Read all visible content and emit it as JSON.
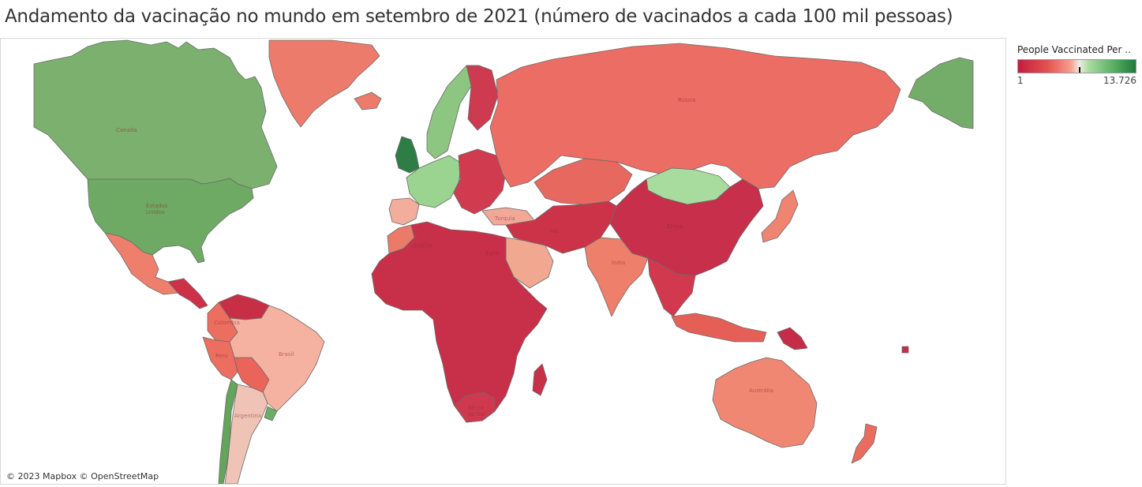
{
  "title": "Andamento da vacinação no mundo em setembro de 2021 (número de vacinados a cada 100 mil pessoas)",
  "legend": {
    "title": "People Vaccinated Per ..",
    "min_label": "1",
    "max_label": "13.726"
  },
  "attribution": "© 2023 Mapbox © OpenStreetMap",
  "colors": {
    "canada": "#7bb06f",
    "usa": "#6eaa63",
    "alaska": "#74ad6a",
    "greenland": "#ec7b6b",
    "mexico": "#ee7f6c",
    "central_america": "#cc3148",
    "south_america": "#f6b2a0",
    "colombia_peru": "#ec6e5f",
    "venezuela": "#c92e47",
    "chile": "#63a55a",
    "uruguay": "#6aad63",
    "argentina": "#efc4b7",
    "bolivia": "#ea6459",
    "uk": "#2e7d44",
    "france_germany": "#9bd391",
    "iberia": "#f2ad9c",
    "scandinavia_green": "#8cc680",
    "scandinavia_red": "#ce3a4f",
    "eastern_europe": "#d03b50",
    "russia": "#eb6d63",
    "kazakhstan": "#e7685f",
    "mongolia": "#a7dc9e",
    "china": "#c72f4a",
    "india": "#ee7f6b",
    "middle_east": "#cc3349",
    "saudi": "#f0a890",
    "africa": "#c82f49",
    "morocco": "#ec7a68",
    "southeast_asia": "#d2384e",
    "japan": "#ef8470",
    "australia": "#ef8772",
    "new_zealand": "#ea6c5f",
    "indonesia": "#e65f57",
    "png": "#c62c48",
    "madagascar": "#c92f48",
    "south_africa": "#cf394f",
    "turkey": "#f2a896"
  },
  "map_labels": {
    "canada": "Canada",
    "usa": "Estados\nUnidos",
    "russia": "Rússia",
    "china": "China",
    "india": "India",
    "brazil": "Brasil",
    "australia": "Austrália",
    "argentina": "Argentina",
    "algeria": "Argélia",
    "egypt": "Egito",
    "iran": "Irã",
    "south_africa": "África\ndo Sul",
    "turkey": "Turquia",
    "peru": "Peru",
    "colombia": "Colombia"
  }
}
